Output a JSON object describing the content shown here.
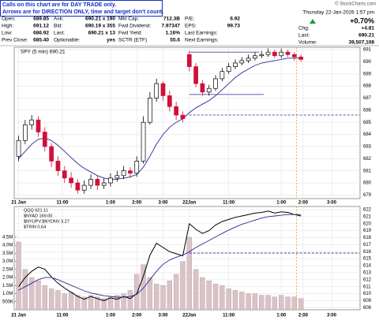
{
  "notice": [
    "Calls on this chart are for DAY TRADE only.",
    "Arrows are for DIRECTION ONLY, time and target don't count."
  ],
  "credit": "© StockCharts.com",
  "quote": {
    "datetime": "Thursday  22-Jan-2026  1:57 pm",
    "change_pct": "+0.70%",
    "rows": [
      [
        [
          "Open:",
          "689.85"
        ],
        [
          "Ask:",
          "690.21 x 190"
        ],
        [
          "Mkt Cap:",
          "712.3B"
        ],
        [
          "P/E:",
          "6.92"
        ]
      ],
      [
        [
          "High:",
          "691.12"
        ],
        [
          "Bid:",
          "690.19 x 355"
        ],
        [
          "Fwd Dividend:",
          "7.97347"
        ],
        [
          "EPS:",
          "99.73"
        ]
      ],
      [
        [
          "Low:",
          "686.92"
        ],
        [
          "Last:",
          "690.21 x 13"
        ],
        [
          "Fwd Yield:",
          "1.16%"
        ],
        [
          "Last Earnings:",
          ""
        ]
      ],
      [
        [
          "Prev Close:",
          "685.40"
        ],
        [
          "Optionable:",
          "yes"
        ],
        [
          "SCTR (ETF)",
          "55.6"
        ],
        [
          "Next Earnings:",
          ""
        ]
      ]
    ],
    "right": [
      [
        "Chg:",
        "+4.81"
      ],
      [
        "Last:",
        "690.21"
      ],
      [
        "Volume:",
        "39,507,108"
      ]
    ]
  },
  "chart_data": [
    {
      "type": "candlestick",
      "label": "SPY (5 min) 690.21",
      "up_color": "#000000",
      "down_color": "#d0103a",
      "x": [
        0,
        3,
        6,
        9,
        12,
        15,
        18,
        21,
        24,
        27,
        30,
        33,
        36,
        39,
        42,
        45,
        48,
        51,
        54,
        57,
        60,
        63,
        66,
        69,
        72,
        75,
        78,
        81,
        84,
        87,
        90,
        93,
        96,
        99,
        102,
        105,
        108,
        111,
        114,
        117,
        120,
        123,
        126,
        129
      ],
      "open": [
        682.2,
        683.5,
        684.8,
        685.2,
        684.2,
        683,
        681.8,
        681,
        680.4,
        680,
        679.4,
        679.8,
        680.3,
        679.8,
        680,
        680.4,
        680.6,
        681,
        680.8,
        681.8,
        685,
        687,
        688.2,
        687.2,
        686.3,
        685.6,
        690.6,
        689.6,
        688.2,
        687.5,
        687.8,
        688.6,
        689.2,
        689.6,
        689.9,
        690.1,
        690.3,
        690.5,
        690.6,
        690.8,
        690.5,
        690.8,
        690.6,
        690.4
      ],
      "high": [
        683.9,
        685.2,
        685.6,
        685.5,
        684.6,
        683.3,
        682.2,
        681.4,
        680.9,
        680.3,
        680.2,
        680.7,
        680.6,
        680.4,
        680.8,
        681,
        681.4,
        681.3,
        682.2,
        685.5,
        687.5,
        688.6,
        688.4,
        687.6,
        686.7,
        685.9,
        690.9,
        689.9,
        688.5,
        688.1,
        688.9,
        689.5,
        689.9,
        690.2,
        690.4,
        690.6,
        690.8,
        690.9,
        691.1,
        691,
        691.1,
        691,
        690.8,
        690.6
      ],
      "low": [
        681.8,
        683.2,
        684.4,
        683.8,
        682.6,
        681.3,
        680.6,
        680,
        679.6,
        679.1,
        679.1,
        679.5,
        679.4,
        679.5,
        679.7,
        680.1,
        680.3,
        680.4,
        680.5,
        681.6,
        684.8,
        686.7,
        686.8,
        685.9,
        685.2,
        685,
        689.2,
        687.9,
        687.2,
        687.2,
        687.6,
        688.4,
        689,
        689.4,
        689.7,
        689.9,
        690.1,
        690.3,
        690.4,
        690.3,
        690.3,
        690.4,
        690.1,
        690
      ],
      "close": [
        683.5,
        684.8,
        685.2,
        684.2,
        683,
        681.8,
        681,
        680.4,
        680,
        679.4,
        679.8,
        680.3,
        679.8,
        680,
        680.4,
        680.6,
        681,
        680.8,
        681.8,
        685,
        687,
        688.2,
        687.2,
        686.3,
        685.6,
        685.3,
        689.6,
        688.2,
        687.5,
        687.8,
        688.6,
        689.2,
        689.6,
        689.9,
        690.1,
        690.3,
        690.5,
        690.6,
        690.8,
        690.5,
        690.8,
        690.6,
        690.4,
        690.2
      ],
      "overlays": [
        {
          "color": "#2a2a9a",
          "values": [
            682,
            682.6,
            683.2,
            683.6,
            683.7,
            683.5,
            683.1,
            682.6,
            682.1,
            681.6,
            681.2,
            680.9,
            680.6,
            680.4,
            680.3,
            680.3,
            680.4,
            680.5,
            680.7,
            681.3,
            682.2,
            683.2,
            684,
            684.6,
            685,
            685.3,
            685.8,
            686.2,
            686.5,
            686.8,
            687.2,
            687.7,
            688.2,
            688.7,
            689.1,
            689.4,
            689.7,
            689.9,
            690,
            690.1,
            690.2,
            690.3,
            690.3,
            690.3
          ]
        }
      ],
      "hlines": [
        {
          "y": 690.8,
          "x": [
            78,
            110
          ],
          "color": "#2a2a9a",
          "dash": false
        },
        {
          "y": 687.3,
          "x": [
            78,
            112
          ],
          "color": "#2a2a9a",
          "dash": false
        },
        {
          "y": 685.6,
          "x": [
            78,
            156
          ],
          "color": "#2a2a9a",
          "dash": true
        }
      ],
      "vline": {
        "x": 127,
        "color": "#f0a020"
      },
      "xlim": [
        -2,
        156
      ],
      "xticks": [
        {
          "value": 0,
          "label": "21 Jan"
        },
        {
          "value": 20,
          "label": "11:00"
        },
        {
          "value": 42,
          "label": "1:00"
        },
        {
          "value": 54,
          "label": "2:00"
        },
        {
          "value": 66,
          "label": "3:00"
        },
        {
          "value": 78,
          "label": "22Jan"
        },
        {
          "value": 96,
          "label": "11:00"
        },
        {
          "value": 120,
          "label": "1:00"
        },
        {
          "value": 130,
          "label": "2:00"
        },
        {
          "value": 143,
          "label": "3:00"
        }
      ],
      "ylim": [
        678.7,
        691.2
      ],
      "yticks": [
        679,
        680,
        681,
        682,
        683,
        684,
        685,
        686,
        687,
        688,
        689,
        690,
        691
      ],
      "grid": true
    },
    {
      "type": "line",
      "overlay_labels": [
        "QQQ 621.11",
        "$NYAD 169.00",
        "$NYUPV:$NYDNV 3.27",
        "$TRIN 0.64"
      ],
      "x": [
        0,
        3,
        6,
        9,
        12,
        15,
        18,
        21,
        24,
        27,
        30,
        33,
        36,
        39,
        42,
        45,
        48,
        51,
        54,
        57,
        60,
        63,
        66,
        69,
        72,
        75,
        78,
        81,
        84,
        87,
        90,
        93,
        96,
        99,
        102,
        105,
        108,
        111,
        114,
        117,
        120,
        123,
        126,
        129
      ],
      "volume": {
        "color": "#d9c3c8",
        "values": [
          4200000,
          2500000,
          2000000,
          1800000,
          1500000,
          1300000,
          1200000,
          1000000,
          1100000,
          900000,
          800000,
          900000,
          800000,
          700000,
          800000,
          900000,
          1000000,
          1200000,
          2200000,
          2800000,
          2000000,
          1600000,
          1500000,
          1800000,
          2200000,
          3000000,
          4500000,
          2500000,
          2000000,
          1800000,
          1600000,
          1500000,
          1300000,
          1200000,
          1100000,
          1000000,
          1000000,
          900000,
          900000,
          800000,
          900000,
          800000,
          800000,
          700000
        ]
      },
      "series": [
        {
          "color": "#000000",
          "axis": "y2",
          "values": [
            611,
            612.3,
            613.2,
            613.8,
            613.5,
            612.4,
            611.5,
            610.8,
            610.2,
            609.6,
            609.2,
            609.6,
            609.3,
            609,
            609.4,
            609.2,
            609.6,
            609.3,
            610,
            612.5,
            615.5,
            617.2,
            616.6,
            616,
            615.7,
            615.4,
            620,
            619.2,
            618.6,
            619,
            619.8,
            620.3,
            620.6,
            620.9,
            621.1,
            621.3,
            621.5,
            621.6,
            621.8,
            621.5,
            621.7,
            621.6,
            621.3,
            621.1
          ]
        },
        {
          "color": "#2a2a9a",
          "axis": "y2",
          "values": [
            610.5,
            611,
            611.5,
            612,
            612.3,
            612.3,
            612,
            611.6,
            611.2,
            610.8,
            610.4,
            610.1,
            609.9,
            609.7,
            609.6,
            609.5,
            609.5,
            609.6,
            609.9,
            610.8,
            612,
            613.2,
            614.2,
            614.8,
            615.2,
            615.5,
            616,
            616.6,
            617.1,
            617.6,
            618.1,
            618.6,
            619.1,
            619.5,
            619.9,
            620.2,
            620.5,
            620.8,
            621,
            621.1,
            621.2,
            621.3,
            621.3,
            621.3
          ]
        }
      ],
      "hlines": [
        {
          "y": 615.8,
          "x": [
            78,
            156
          ],
          "color": "#2a2a9a",
          "dash": true
        }
      ],
      "vline": {
        "x": 127,
        "color": "#f0a020"
      },
      "xlim": [
        -2,
        156
      ],
      "xticks": [
        {
          "value": 0,
          "label": "21 Jan"
        },
        {
          "value": 20,
          "label": "11:00"
        },
        {
          "value": 42,
          "label": "1:00"
        },
        {
          "value": 54,
          "label": "2:00"
        },
        {
          "value": 66,
          "label": "3:00"
        },
        {
          "value": 78,
          "label": "22Jan"
        },
        {
          "value": 96,
          "label": "11:00"
        },
        {
          "value": 120,
          "label": "1:00"
        },
        {
          "value": 130,
          "label": "2:00"
        },
        {
          "value": 143,
          "label": "3:00"
        }
      ],
      "ylim": [
        0,
        6400000
      ],
      "yticks": [
        {
          "value": 500000,
          "label": "500K"
        },
        {
          "value": 1000000,
          "label": "1.0M"
        },
        {
          "value": 1500000,
          "label": "1.5M"
        },
        {
          "value": 2000000,
          "label": "2.0M"
        },
        {
          "value": 2500000,
          "label": "2.5M"
        },
        {
          "value": 3000000,
          "label": "3.0M"
        },
        {
          "value": 3500000,
          "label": "3.5M"
        },
        {
          "value": 4000000,
          "label": "4.0M"
        },
        {
          "value": 4500000,
          "label": "4.5M"
        }
      ],
      "y2lim": [
        607.7,
        622.45
      ],
      "y2ticks": [
        608,
        609,
        610,
        611,
        612,
        613,
        614,
        615,
        616,
        617,
        618,
        619,
        620,
        621,
        622
      ],
      "grid": true
    }
  ]
}
